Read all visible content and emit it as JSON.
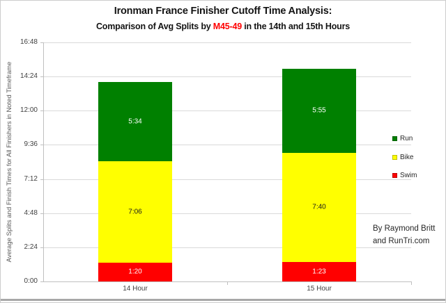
{
  "page": {
    "title": "Ironman France Finisher Cutoff Time Analysis:",
    "subtitle_prefix": "Comparison of Avg Splits by ",
    "subtitle_highlight": "M45-49",
    "subtitle_suffix": " in the 14th and 15th Hours",
    "attribution_line1": "By Raymond Britt",
    "attribution_line2": "and RunTri.com"
  },
  "chart_data": {
    "type": "bar",
    "stacked": true,
    "title": "Ironman France Finisher Cutoff Time Analysis: Comparison of Avg Splits by M45-49 in the 14th and 15th Hours",
    "categories": [
      "14 Hour",
      "15 Hour"
    ],
    "series": [
      {
        "name": "Swim",
        "color": "#ff0000",
        "label_color": "#ffffff",
        "values": [
          "1:20",
          "1:23"
        ]
      },
      {
        "name": "Bike",
        "color": "#ffff00",
        "label_color": "#1a1a1a",
        "values": [
          "7:06",
          "7:40"
        ]
      },
      {
        "name": "Run",
        "color": "#008000",
        "label_color": "#ffffff",
        "values": [
          "5:34",
          "5:55"
        ]
      }
    ],
    "value_unit": "h:mm",
    "ylabel": "Average Splits and Finish Times for All Finishers in Noted Timeframe",
    "yticks": [
      "0:00",
      "2:24",
      "4:48",
      "7:12",
      "9:36",
      "12:00",
      "14:24",
      "16:48"
    ],
    "ylim": [
      "0:00",
      "16:48"
    ],
    "grid": true,
    "legend": [
      "Run",
      "Bike",
      "Swim"
    ],
    "legend_position": "right",
    "subtitle_highlight_color": "#ff0000"
  }
}
